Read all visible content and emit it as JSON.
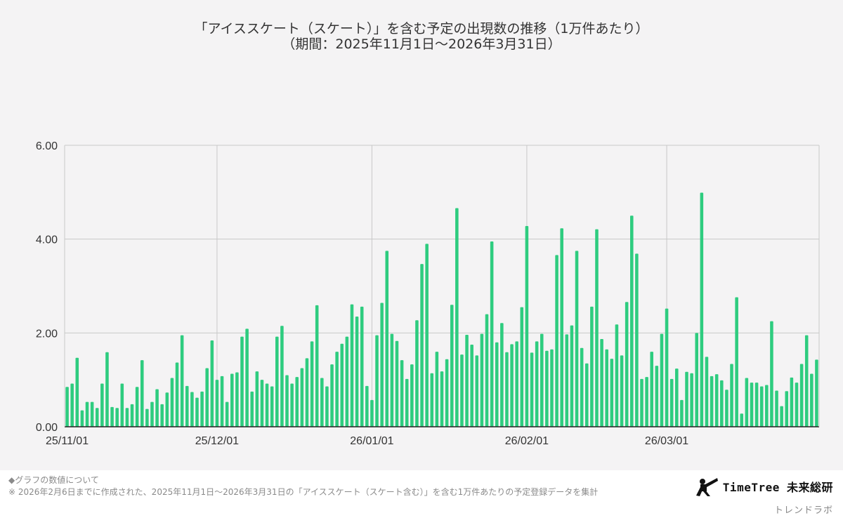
{
  "title_line1": "「アイススケート（スケート）」を含む予定の出現数の推移（1万件あたり）",
  "title_line2": "（期間：2025年11月1日〜2026年3月31日）",
  "note_heading": "◆グラフの数値について",
  "note_body": "※ 2026年2月6日までに作成された、2025年11月1日〜2026年3月31日の「アイススケート（スケート含む）」を含む1万件あたりの予定登録データを集計",
  "brand_name": "TimeTree 未来総研",
  "brand_sub": "トレンドラボ",
  "brand_icon": "telescope-person-icon",
  "colors": {
    "bar": "#2ecc7f",
    "grid": "#c8c8c8",
    "axis": "#222222",
    "background": "#f4f3f4"
  },
  "chart_data": {
    "type": "bar",
    "title": "「アイススケート（スケート）」を含む予定の出現数の推移（1万件あたり）",
    "xlabel": "",
    "ylabel": "",
    "ylim": [
      0,
      6
    ],
    "yticks": [
      "0.00",
      "2.00",
      "4.00",
      "6.00"
    ],
    "xticks": [
      {
        "label": "25/11/01",
        "index": 0
      },
      {
        "label": "25/12/01",
        "index": 30
      },
      {
        "label": "26/01/01",
        "index": 61
      },
      {
        "label": "26/02/01",
        "index": 92
      },
      {
        "label": "26/03/01",
        "index": 120
      }
    ],
    "start_date": "2025-11-01",
    "end_date": "2026-03-31",
    "values": [
      0.85,
      0.92,
      1.47,
      0.35,
      0.53,
      0.53,
      0.4,
      0.92,
      1.59,
      0.42,
      0.4,
      0.92,
      0.4,
      0.48,
      0.85,
      1.42,
      0.38,
      0.53,
      0.8,
      0.48,
      0.73,
      1.04,
      1.37,
      1.95,
      0.87,
      0.74,
      0.62,
      0.75,
      1.25,
      1.84,
      1.0,
      1.08,
      0.53,
      1.13,
      1.16,
      1.92,
      2.09,
      0.75,
      1.18,
      1.0,
      0.92,
      0.86,
      1.92,
      2.15,
      1.1,
      0.92,
      1.06,
      1.25,
      1.46,
      1.82,
      2.59,
      1.04,
      0.86,
      1.33,
      1.6,
      1.77,
      1.92,
      2.61,
      2.35,
      2.56,
      0.87,
      0.57,
      1.95,
      2.64,
      3.75,
      1.98,
      1.83,
      1.42,
      1.02,
      1.33,
      2.27,
      3.47,
      3.9,
      1.14,
      1.6,
      1.18,
      1.44,
      2.6,
      4.66,
      1.54,
      1.96,
      1.75,
      1.52,
      1.98,
      2.4,
      3.95,
      1.8,
      2.21,
      1.59,
      1.76,
      1.82,
      2.55,
      4.28,
      1.58,
      1.82,
      1.98,
      1.62,
      1.65,
      3.66,
      4.23,
      1.97,
      2.16,
      3.75,
      1.68,
      1.35,
      2.56,
      4.21,
      1.87,
      1.65,
      1.45,
      2.18,
      1.52,
      2.66,
      4.5,
      3.69,
      1.02,
      1.06,
      1.6,
      1.3,
      1.98,
      2.52,
      1.02,
      1.24,
      0.57,
      1.17,
      1.14,
      2.0,
      4.99,
      1.49,
      1.08,
      1.12,
      0.99,
      0.79,
      1.34,
      2.76,
      0.28,
      1.04,
      0.94,
      0.94,
      0.86,
      0.89,
      2.25,
      0.77,
      0.44,
      0.76,
      1.05,
      0.94,
      1.34,
      1.95,
      1.13,
      1.43
    ]
  }
}
